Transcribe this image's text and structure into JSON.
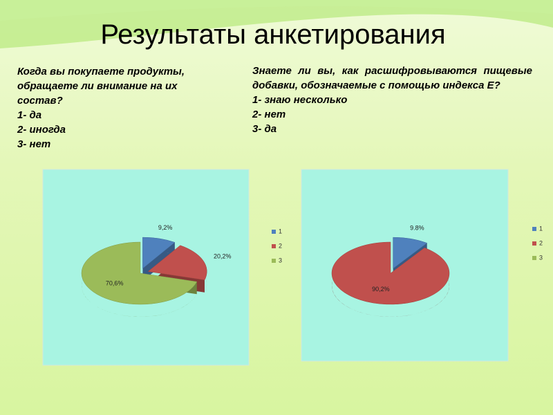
{
  "title": "Результаты анкетирования",
  "questions": [
    {
      "text": "Когда вы покупаете продукты, обращаете ли внимание на их состав?",
      "options": [
        "1- да",
        "2- иногда",
        "3- нет"
      ]
    },
    {
      "text": "Знаете ли вы, как расшифровываются пищевые добавки, обозначаемые с помощью индекса Е?",
      "options": [
        "1- знаю несколько",
        "2- нет",
        "3- да"
      ]
    }
  ],
  "chart_data": [
    {
      "type": "pie",
      "categories": [
        "1",
        "2",
        "3"
      ],
      "values": [
        9.2,
        20.2,
        70.6
      ],
      "value_labels": [
        "9,2%",
        "20,2%",
        "70,6%"
      ],
      "colors": [
        "#4f81bd",
        "#c0504d",
        "#9bbb59"
      ],
      "legend": "right"
    },
    {
      "type": "pie",
      "categories": [
        "1",
        "2",
        "3"
      ],
      "values": [
        9.8,
        90.2,
        0
      ],
      "value_labels": [
        "9.8%",
        "90,2%",
        null
      ],
      "colors": [
        "#4f81bd",
        "#c0504d",
        "#9bbb59"
      ],
      "legend": "right"
    }
  ]
}
